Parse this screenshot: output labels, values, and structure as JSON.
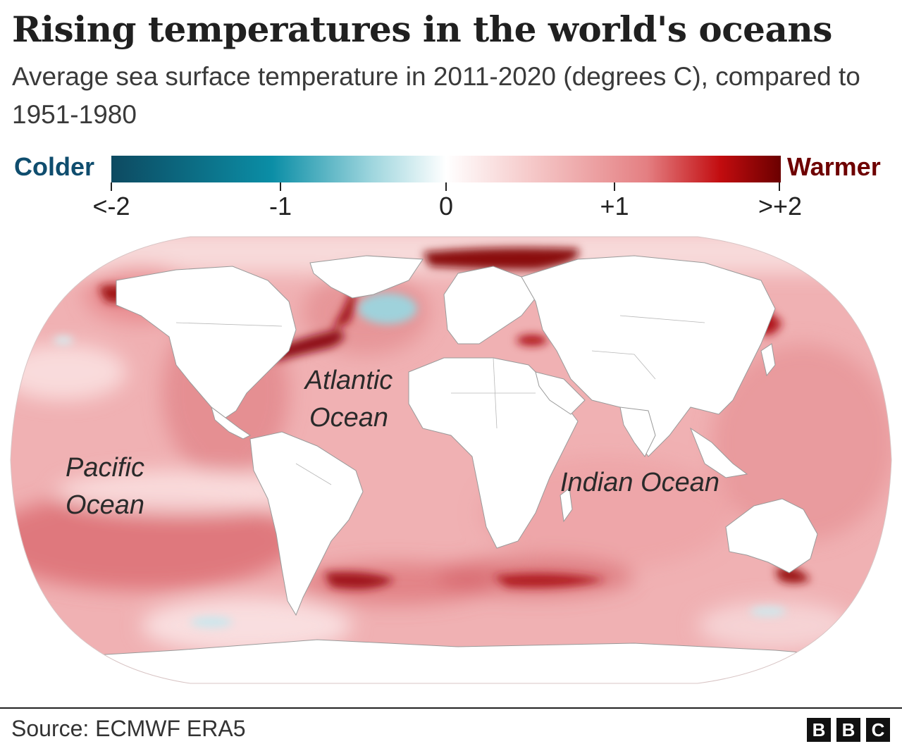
{
  "title": "Rising temperatures in the world's oceans",
  "subtitle": "Average sea surface temperature in 2011-2020 (degrees C), compared to 1951-1980",
  "legend": {
    "low_label": "Colder",
    "high_label": "Warmer",
    "ticks": [
      {
        "value": -2,
        "label": "<-2"
      },
      {
        "value": -1,
        "label": "-1"
      },
      {
        "value": 0,
        "label": "0"
      },
      {
        "value": 1,
        "label": "+1"
      },
      {
        "value": 2,
        "label": ">+2"
      }
    ],
    "range": [
      -2,
      2
    ],
    "colors": {
      "coldest": "#0d4a61",
      "cold": "#0b8ea6",
      "neutral": "#ffffff",
      "warm": "#e47f82",
      "warmest": "#6b0000"
    }
  },
  "map": {
    "projection": "Robinson",
    "ocean_labels": {
      "atlantic": "Atlantic Ocean",
      "pacific": "Pacific Ocean",
      "indian": "Indian Ocean"
    },
    "ocean_color": "#f0b1b3",
    "land_color": "#ffffff"
  },
  "source": "Source: ECMWF ERA5",
  "logo": [
    "B",
    "B",
    "C"
  ]
}
